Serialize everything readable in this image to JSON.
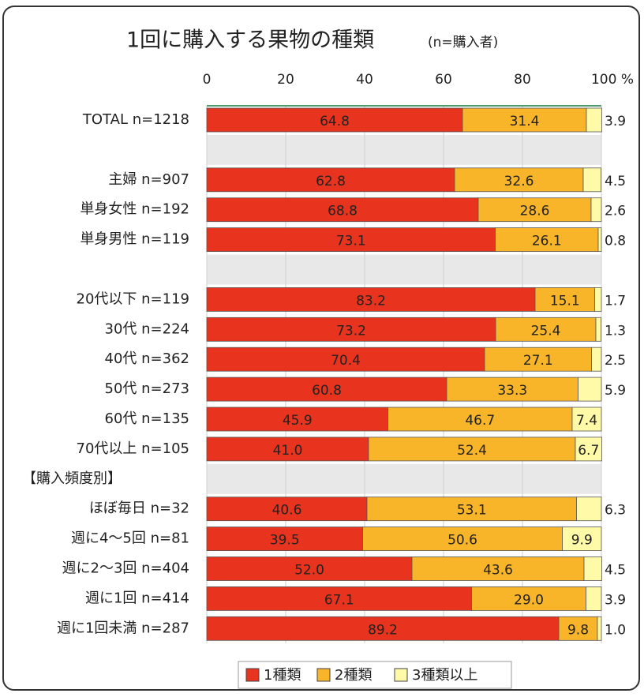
{
  "chart_data": {
    "type": "stacked-bar-horizontal",
    "title": "1回に購入する果物の種類",
    "subtitle": "(n=購入者)",
    "categories": [
      "TOTAL n=1218",
      null,
      "主婦 n=907",
      "単身女性 n=192",
      "単身男性 n=119",
      null,
      "20代以下 n=119",
      "30代 n=224",
      "40代 n=362",
      "50代 n=273",
      "60代 n=135",
      "70代以上 n=105",
      "【購入頻度別】",
      "ほぼ毎日 n=32",
      "週に4～5回 n=81",
      "週に2～3回 n=404",
      "週に1回 n=414",
      "週に1回未満 n=287"
    ],
    "series": [
      {
        "name": "1種類",
        "color": "#e8341f",
        "values": [
          64.8,
          null,
          62.8,
          68.8,
          73.1,
          null,
          83.2,
          73.2,
          70.4,
          60.8,
          45.9,
          41.0,
          null,
          40.6,
          39.5,
          52.0,
          67.1,
          89.2
        ],
        "value_labels": [
          "64.8",
          null,
          "62.8",
          "68.8",
          "73.1",
          null,
          "83.2",
          "73.2",
          "70.4",
          "60.8",
          "45.9",
          "41.0",
          null,
          "40.6",
          "39.5",
          "52.0",
          "67.1",
          "89.2"
        ]
      },
      {
        "name": "2種類",
        "color": "#f8b52a",
        "values": [
          31.4,
          null,
          32.6,
          28.6,
          26.1,
          null,
          15.1,
          25.4,
          27.1,
          33.3,
          46.7,
          52.4,
          null,
          53.1,
          50.6,
          43.6,
          29.0,
          9.8
        ],
        "value_labels": [
          "31.4",
          null,
          "32.6",
          "28.6",
          "26.1",
          null,
          "15.1",
          "25.4",
          "27.1",
          "33.3",
          "46.7",
          "52.4",
          null,
          "53.1",
          "50.6",
          "43.6",
          "29.0",
          "9.8"
        ]
      },
      {
        "name": "3種類以上",
        "color": "#fffaa8",
        "values": [
          3.9,
          null,
          4.5,
          2.6,
          0.8,
          null,
          1.7,
          1.3,
          2.5,
          5.9,
          7.4,
          6.7,
          null,
          6.3,
          9.9,
          4.5,
          3.9,
          1.0
        ],
        "value_labels": [
          "3.9",
          null,
          "4.5",
          "2.6",
          "0.8",
          null,
          "1.7",
          "1.3",
          "2.5",
          "5.9",
          "7.4",
          "6.7",
          null,
          "6.3",
          "9.9",
          "4.5",
          "3.9",
          "1.0"
        ]
      }
    ],
    "xlim": [
      0,
      100
    ],
    "xticks": [
      0,
      20,
      40,
      60,
      80,
      {
        "value": 100,
        "label": "100 %"
      }
    ],
    "grid": true
  }
}
